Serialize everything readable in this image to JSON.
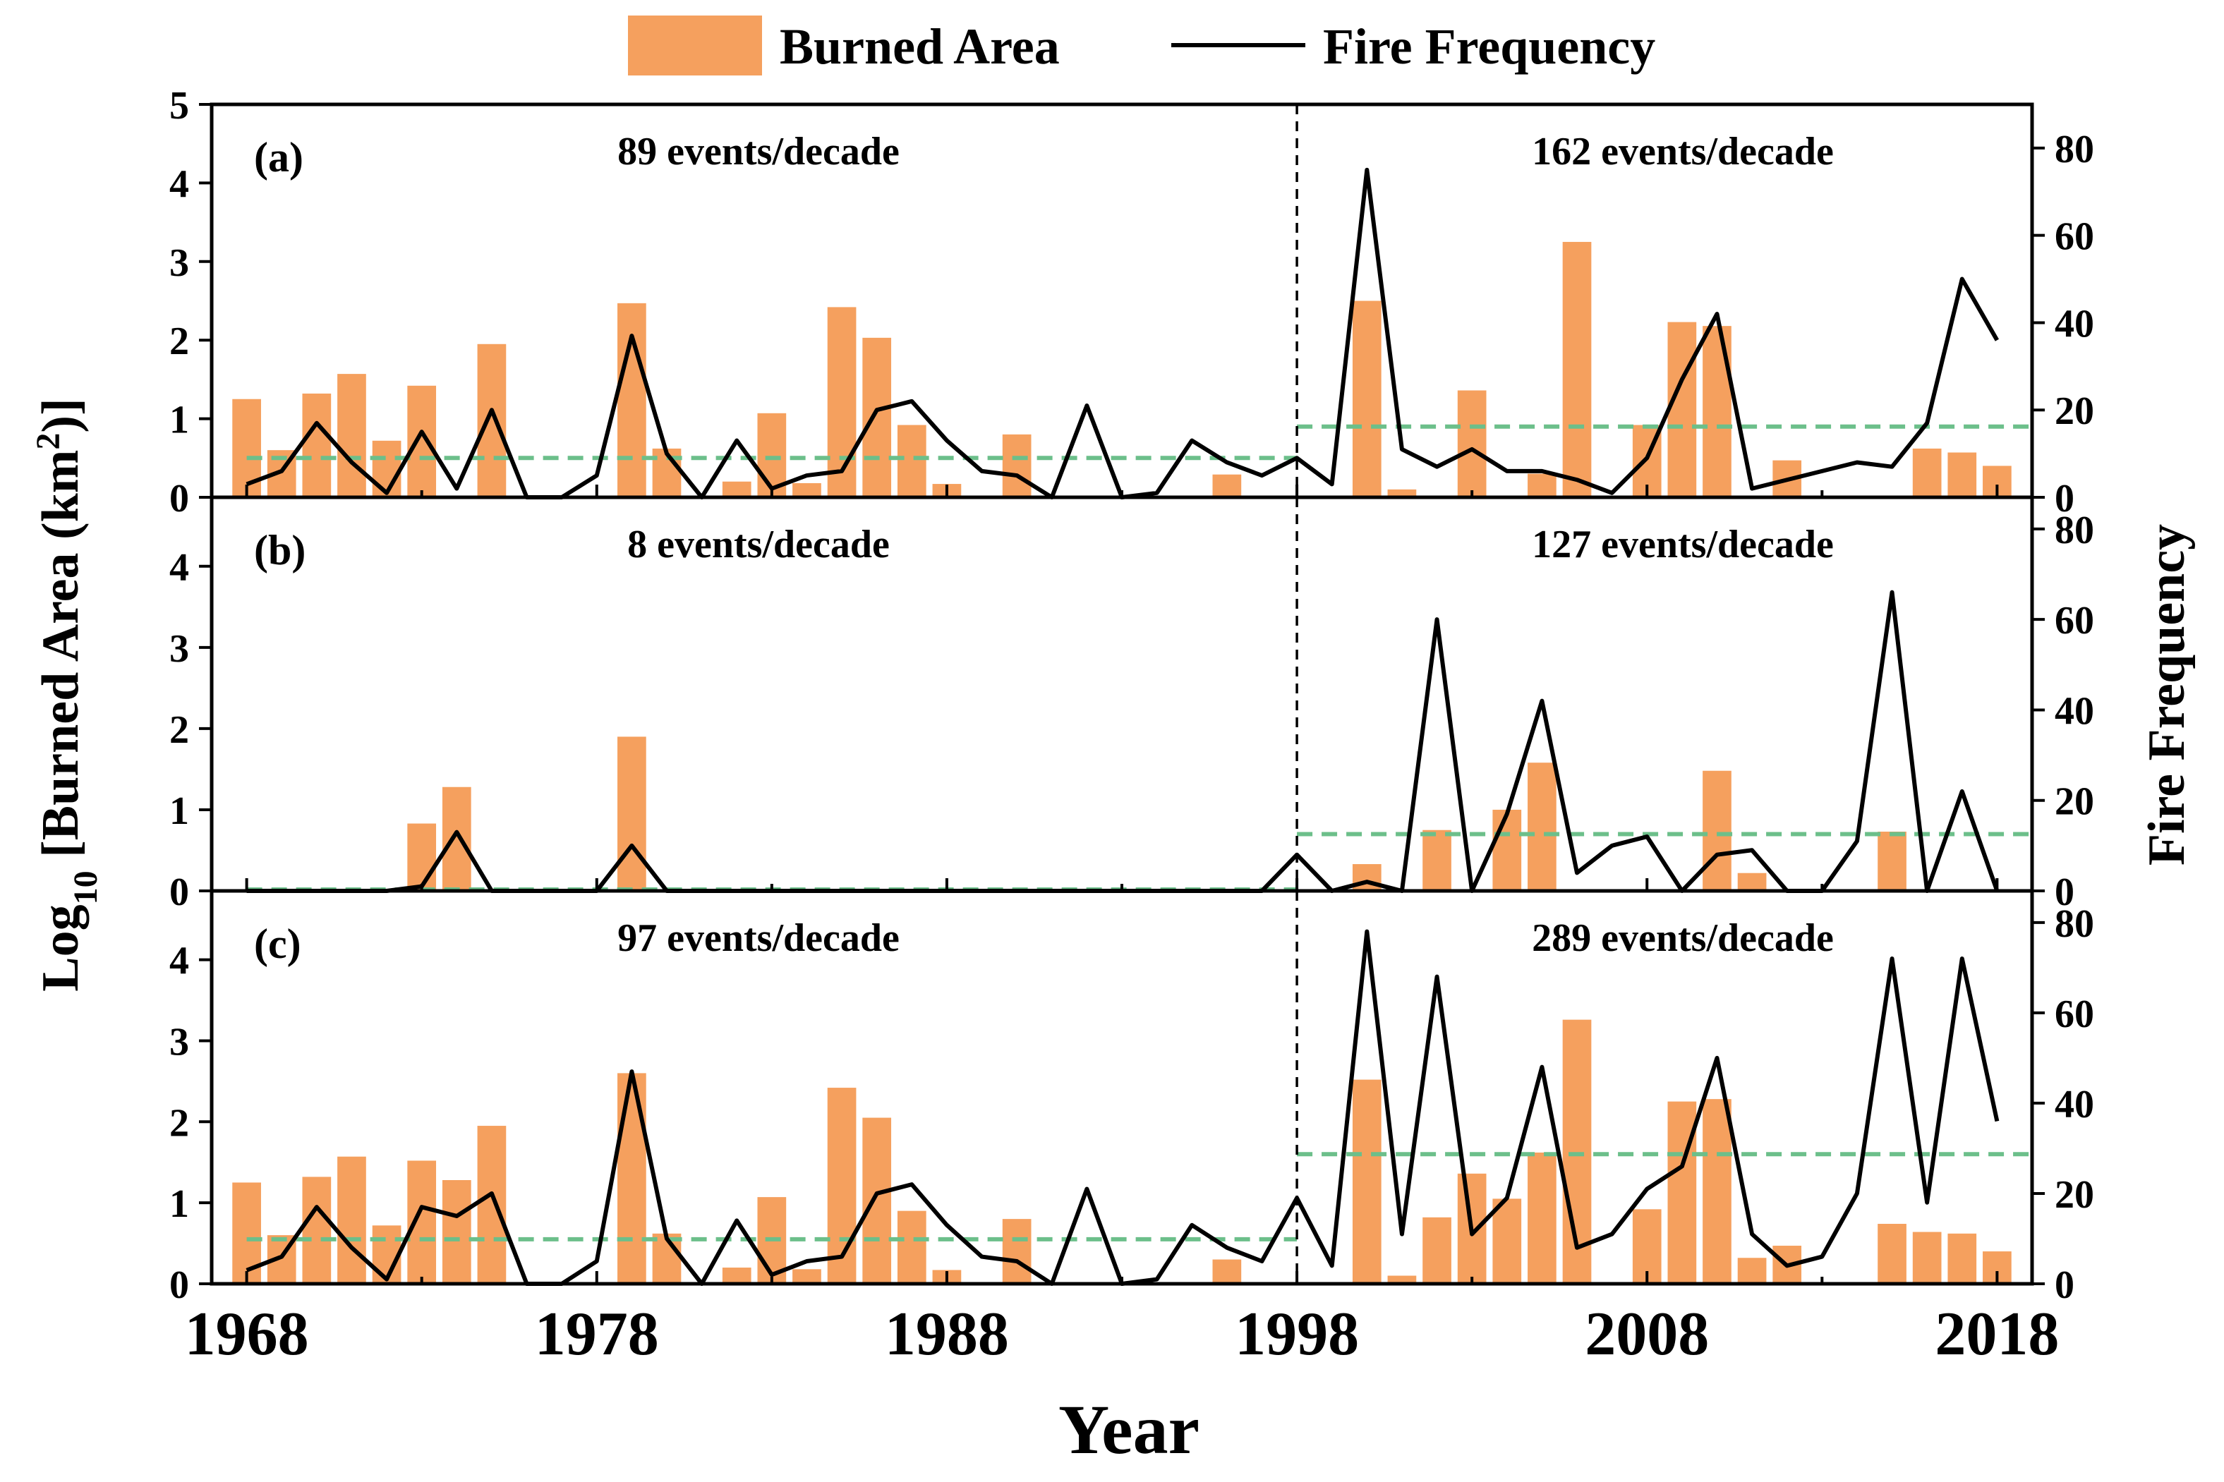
{
  "chart_data": {
    "type": "bar-line-combo",
    "xlabel": "Year",
    "ylabel_left_main": "Log",
    "ylabel_left_sub": "10",
    "ylabel_left_rest": " [Burned Area (km",
    "ylabel_left_sup": "2",
    "ylabel_left_end": ")]",
    "ylabel_right": "Fire Frequency",
    "legend": {
      "bar": "Burned Area",
      "line": "Fire Frequency",
      "position": "top-center"
    },
    "x_ticks": [
      1968,
      1978,
      1988,
      1998,
      2008,
      2018
    ],
    "x_range": [
      1967,
      2019
    ],
    "divider_year": 1998,
    "years": [
      1968,
      1969,
      1970,
      1971,
      1972,
      1973,
      1974,
      1975,
      1976,
      1977,
      1978,
      1979,
      1980,
      1981,
      1982,
      1983,
      1984,
      1985,
      1986,
      1987,
      1988,
      1989,
      1990,
      1991,
      1992,
      1993,
      1994,
      1995,
      1996,
      1997,
      1998,
      1999,
      2000,
      2001,
      2002,
      2003,
      2004,
      2005,
      2006,
      2007,
      2008,
      2009,
      2010,
      2011,
      2012,
      2013,
      2014,
      2015,
      2016,
      2017,
      2018
    ],
    "panels": [
      {
        "label": "(a)",
        "left_ylim": [
          0,
          5
        ],
        "left_ticks": [
          0,
          1,
          2,
          3,
          4,
          5
        ],
        "right_ylim": [
          0,
          90
        ],
        "right_ticks": [
          0,
          20,
          40,
          60,
          80
        ],
        "rate_before": "89  events/decade",
        "rate_after": "162  events/decade",
        "burned_area": [
          1.25,
          0.6,
          1.32,
          1.57,
          0.72,
          1.42,
          0,
          1.95,
          0,
          0,
          0,
          2.47,
          0.62,
          0,
          0.2,
          1.07,
          0.18,
          2.42,
          2.03,
          0.92,
          0.17,
          0,
          0.8,
          0,
          0,
          0,
          0,
          0,
          0.29,
          0,
          0,
          0,
          2.5,
          0.1,
          0,
          1.36,
          0,
          0.3,
          3.25,
          0,
          0.92,
          2.23,
          2.18,
          0,
          0.47,
          0,
          0,
          0,
          0.62,
          0.57,
          0.4
        ],
        "fire_frequency": [
          3,
          6,
          17,
          8,
          1,
          15,
          2,
          20,
          0,
          0,
          5,
          37,
          10,
          0,
          13,
          2,
          5,
          6,
          20,
          22,
          13,
          6,
          5,
          0,
          21,
          0,
          1,
          13,
          8,
          5,
          9,
          3,
          75,
          11,
          7,
          11,
          6,
          6,
          4,
          1,
          9,
          27,
          42,
          2,
          4,
          6,
          8,
          7,
          17,
          50,
          36
        ],
        "mean_before": 0.5,
        "mean_after": 0.9
      },
      {
        "label": "(b)",
        "left_ylim": [
          0,
          4.85
        ],
        "left_ticks": [
          0,
          1,
          2,
          3,
          4
        ],
        "right_ylim": [
          0,
          87
        ],
        "right_ticks": [
          0,
          20,
          40,
          60,
          80
        ],
        "rate_before": "8  events/decade",
        "rate_after": "127  events/decade",
        "burned_area": [
          0,
          0,
          0,
          0,
          0,
          0.83,
          1.28,
          0,
          0,
          0,
          0,
          1.9,
          0,
          0,
          0,
          0,
          0,
          0,
          0,
          0,
          0,
          0,
          0,
          0,
          0,
          0,
          0,
          0,
          0,
          0,
          0,
          0,
          0.33,
          0,
          0.75,
          0,
          1.0,
          1.58,
          0,
          0,
          0,
          0,
          1.48,
          0.22,
          0,
          0,
          0,
          0.73,
          0,
          0,
          0
        ],
        "fire_frequency": [
          0,
          0,
          0,
          0,
          0,
          1,
          13,
          0,
          0,
          0,
          0,
          10,
          0,
          0,
          0,
          0,
          0,
          0,
          0,
          0,
          0,
          0,
          0,
          0,
          0,
          0,
          0,
          0,
          0,
          0,
          8,
          0,
          2,
          0,
          60,
          0,
          17,
          42,
          4,
          10,
          12,
          0,
          8,
          9,
          0,
          0,
          11,
          66,
          0,
          22,
          0
        ],
        "mean_before": 0,
        "mean_after": 0.7
      },
      {
        "label": "(c)",
        "left_ylim": [
          0,
          4.85
        ],
        "left_ticks": [
          0,
          1,
          2,
          3,
          4
        ],
        "right_ylim": [
          0,
          87
        ],
        "right_ticks": [
          0,
          20,
          40,
          60,
          80
        ],
        "rate_before": "97  events/decade",
        "rate_after": "289  events/decade",
        "burned_area": [
          1.25,
          0.6,
          1.32,
          1.57,
          0.72,
          1.52,
          1.28,
          1.95,
          0,
          0,
          0,
          2.6,
          0.62,
          0,
          0.2,
          1.07,
          0.18,
          2.42,
          2.05,
          0.9,
          0.17,
          0,
          0.8,
          0,
          0,
          0,
          0,
          0,
          0.3,
          0,
          0,
          0,
          2.52,
          0.1,
          0.82,
          1.36,
          1.05,
          1.62,
          3.26,
          0,
          0.92,
          2.25,
          2.28,
          0.32,
          0.47,
          0,
          0,
          0.74,
          0.64,
          0.62,
          0.4
        ],
        "fire_frequency": [
          3,
          6,
          17,
          8,
          1,
          17,
          15,
          20,
          0,
          0,
          5,
          47,
          10,
          0,
          14,
          2,
          5,
          6,
          20,
          22,
          13,
          6,
          5,
          0,
          21,
          0,
          1,
          13,
          8,
          5,
          19,
          4,
          78,
          11,
          68,
          11,
          19,
          48,
          8,
          11,
          21,
          26,
          50,
          11,
          4,
          6,
          20,
          72,
          18,
          72,
          36
        ],
        "mean_before": 0.55,
        "mean_after": 1.6
      }
    ]
  }
}
